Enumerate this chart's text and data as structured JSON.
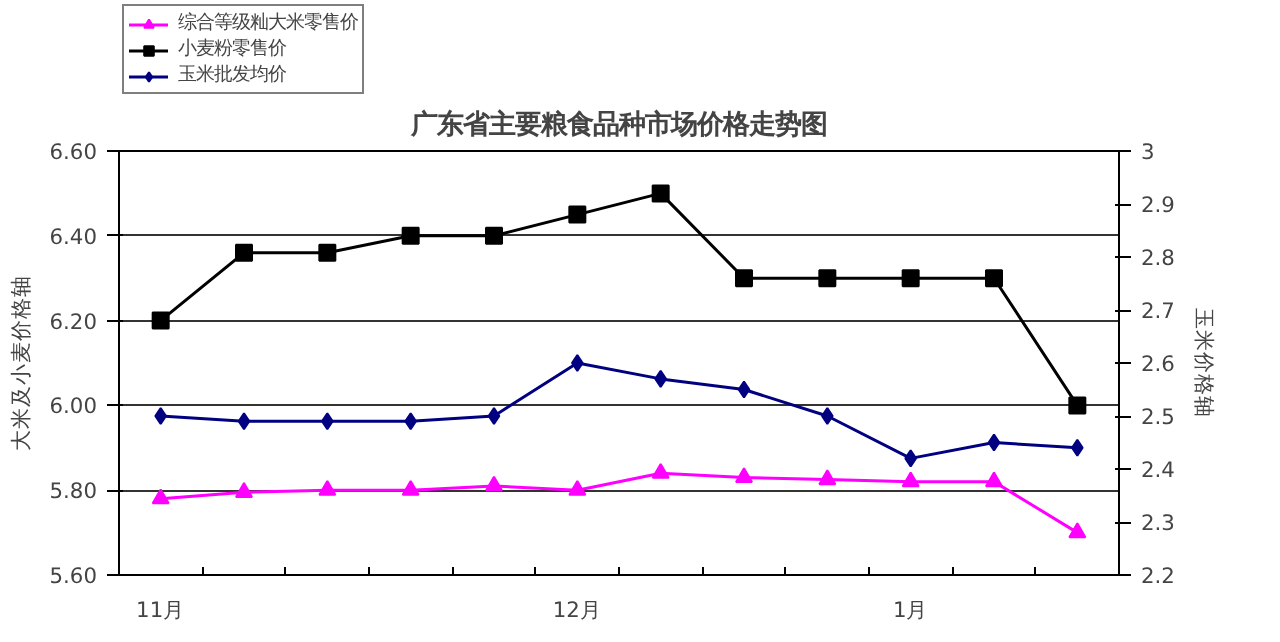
{
  "chart_data": {
    "type": "line",
    "title": "广东省主要粮食品种市场价格走势图",
    "ylabel": "大米及小麦价格轴",
    "y2label": "玉米价格轴",
    "categories": [
      "11月",
      null,
      null,
      null,
      null,
      "12月",
      null,
      null,
      null,
      "1月",
      null,
      null
    ],
    "series": [
      {
        "name": "综合等级籼大米零售价",
        "color": "#ff00ff",
        "marker": "triangle",
        "values": [
          5.78,
          5.795,
          5.8,
          5.8,
          5.81,
          5.8,
          5.84,
          5.83,
          5.825,
          5.82,
          5.82,
          5.7
        ]
      },
      {
        "name": "小麦粉零售价",
        "color": "#000000",
        "marker": "square",
        "values": [
          6.2,
          6.36,
          6.36,
          6.4,
          6.4,
          6.45,
          6.5,
          6.3,
          6.3,
          6.3,
          6.3,
          6.0
        ]
      },
      {
        "name": "玉米批发均价",
        "color": "#000080",
        "marker": "diamond",
        "axis": "y2",
        "values": [
          2.5,
          2.49,
          2.49,
          2.49,
          2.5,
          2.6,
          2.57,
          2.55,
          2.5,
          2.42,
          2.45,
          2.44
        ]
      }
    ],
    "ylim": [
      5.6,
      6.6
    ],
    "yticks": [
      {
        "value": 5.6,
        "label": "5.60"
      },
      {
        "value": 5.8,
        "label": "5.80"
      },
      {
        "value": 6.0,
        "label": "6.00"
      },
      {
        "value": 6.2,
        "label": "6.20"
      },
      {
        "value": 6.4,
        "label": "6.40"
      },
      {
        "value": 6.6,
        "label": "6.60"
      }
    ],
    "y2lim": [
      2.2,
      3
    ],
    "y2ticks": [
      2.2,
      2.3,
      2.4,
      2.5,
      2.6,
      2.7,
      2.8,
      2.9,
      3
    ],
    "grid": "y",
    "legend": "top left",
    "line_style": "solid"
  }
}
